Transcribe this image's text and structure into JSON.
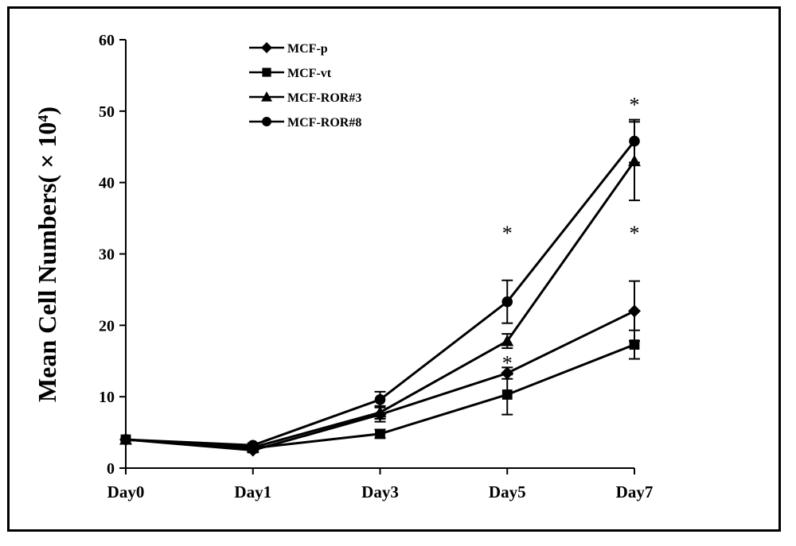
{
  "chart_data": {
    "type": "line",
    "title": "",
    "xlabel": "",
    "ylabel": "Mean Cell Numbers( × 10",
    "ylabel_exp": "4",
    "ylabel_close": ")",
    "ylim": [
      0,
      60
    ],
    "yticks": [
      "0",
      "10",
      "20",
      "30",
      "40",
      "50",
      "60"
    ],
    "categories": [
      "Day0",
      "Day1",
      "Day3",
      "Day5",
      "Day7"
    ],
    "legend_position": "top-left",
    "grid": false,
    "series": [
      {
        "name": "MCF-p",
        "marker": "diamond",
        "values": [
          4,
          2.5,
          7.5,
          13.3,
          22.0
        ],
        "errors": [
          0,
          0.3,
          1.0,
          0.8,
          4.2
        ]
      },
      {
        "name": "MCF-vt",
        "marker": "square",
        "values": [
          4,
          2.8,
          4.8,
          10.3,
          17.3
        ],
        "errors": [
          0,
          0.3,
          0.6,
          2.8,
          2.0
        ]
      },
      {
        "name": "MCF-ROR#3",
        "marker": "triangle",
        "values": [
          4,
          2.9,
          7.8,
          17.8,
          43.0
        ],
        "errors": [
          0,
          0.3,
          0.9,
          1.0,
          5.5
        ]
      },
      {
        "name": "MCF-ROR#8",
        "marker": "circle",
        "values": [
          4,
          3.2,
          9.6,
          23.3,
          45.8
        ],
        "errors": [
          0,
          0.3,
          1.1,
          3.0,
          3.0
        ]
      }
    ],
    "annotations": [
      {
        "text": "*",
        "category": "Day5",
        "y": 33.5
      },
      {
        "text": "*",
        "category": "Day5",
        "y": 15.3
      },
      {
        "text": "*",
        "category": "Day7",
        "y": 51.5
      },
      {
        "text": "*",
        "category": "Day7",
        "y": 33.5
      }
    ]
  }
}
